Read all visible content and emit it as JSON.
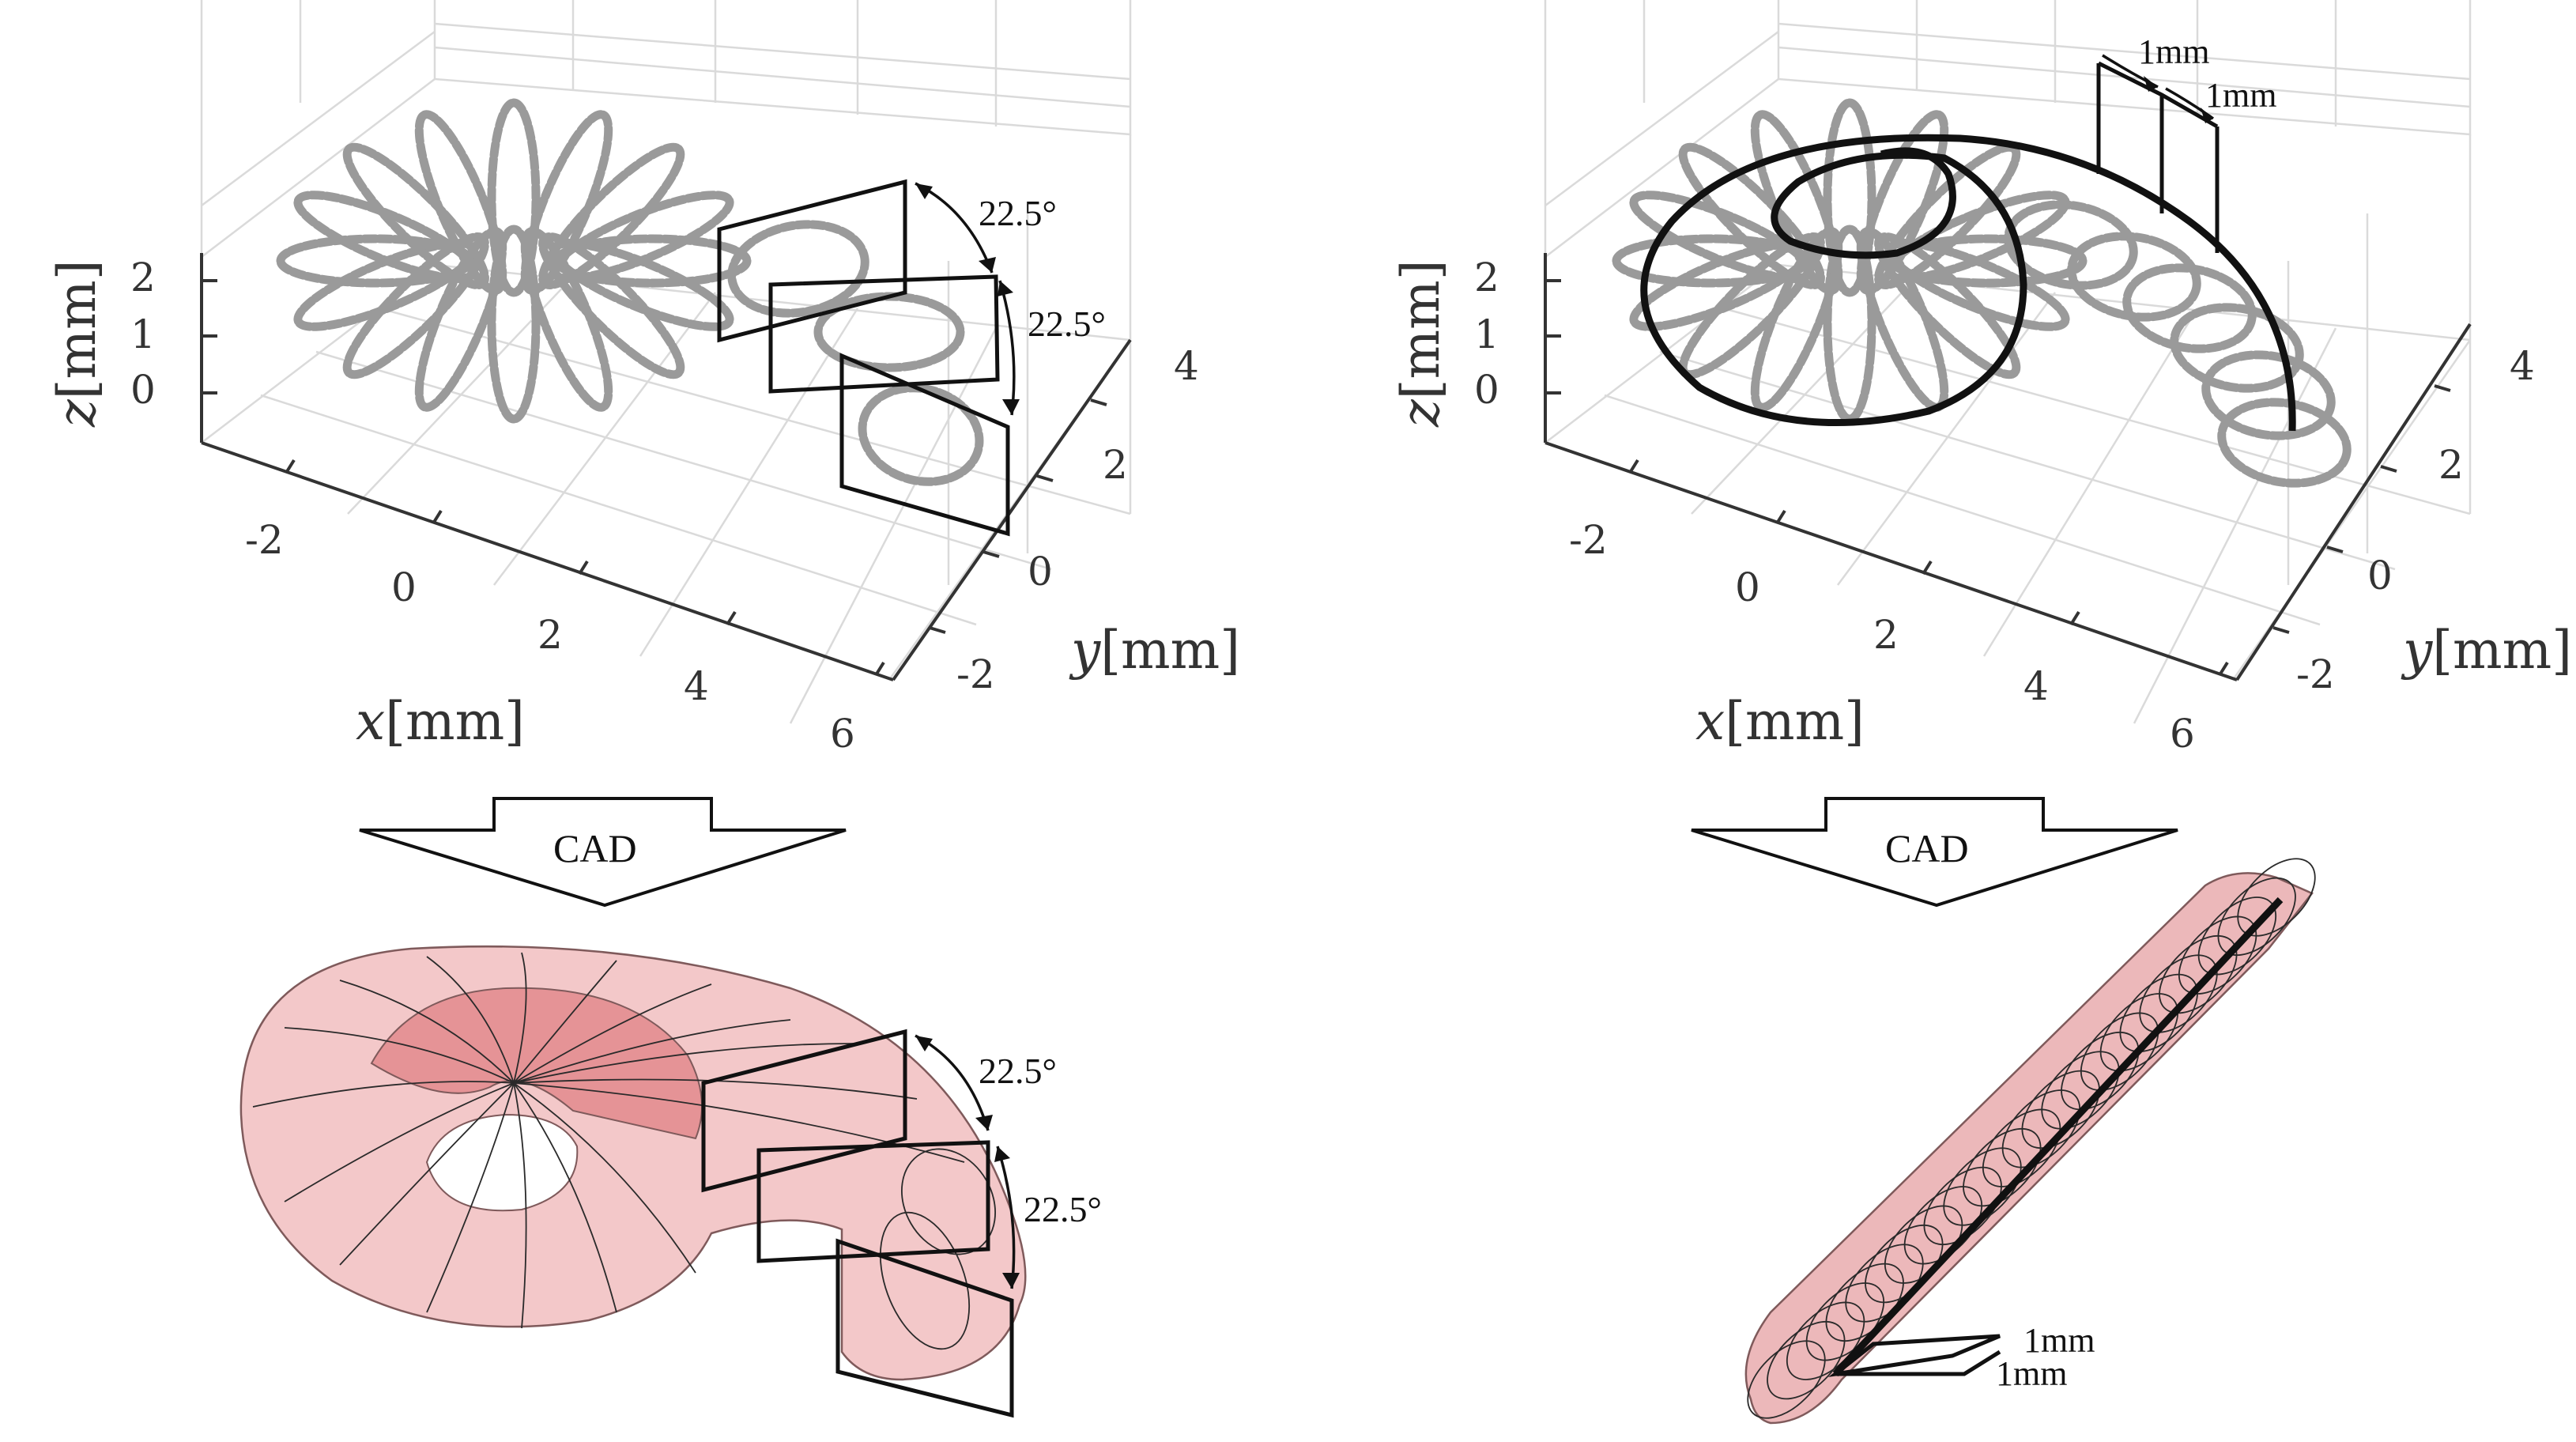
{
  "left_plot": {
    "x_ticks": [
      "-2",
      "0",
      "2",
      "4",
      "6"
    ],
    "y_ticks": [
      "-2",
      "0",
      "2",
      "4"
    ],
    "z_ticks": [
      "0",
      "1",
      "2"
    ],
    "x_label_var": "x",
    "x_label_unit": "[mm]",
    "y_label_var": "y",
    "y_label_unit": "[mm]",
    "z_label_var": "z",
    "z_label_unit": "[mm]",
    "angle_1": "22.5°",
    "angle_2": "22.5°"
  },
  "right_plot": {
    "x_ticks": [
      "-2",
      "0",
      "2",
      "4",
      "6"
    ],
    "y_ticks": [
      "-2",
      "0",
      "2",
      "4"
    ],
    "z_ticks": [
      "0",
      "1",
      "2"
    ],
    "x_label_var": "x",
    "x_label_unit": "[mm]",
    "y_label_var": "y",
    "y_label_unit": "[mm]",
    "z_label_var": "z",
    "z_label_unit": "[mm]",
    "offset_1": "1mm",
    "offset_2": "1mm"
  },
  "left_arrow_label": "CAD",
  "right_arrow_label": "CAD",
  "left_cad": {
    "angle_1": "22.5°",
    "angle_2": "22.5°"
  },
  "right_cad": {
    "offset_1": "1mm",
    "offset_2": "1mm"
  },
  "colors": {
    "sample_points": "#9a9a9a",
    "guide_lines": "#111111",
    "surface_fill": "#e9a3a5",
    "surface_dark": "#c84f55",
    "grid": "#dadada"
  }
}
